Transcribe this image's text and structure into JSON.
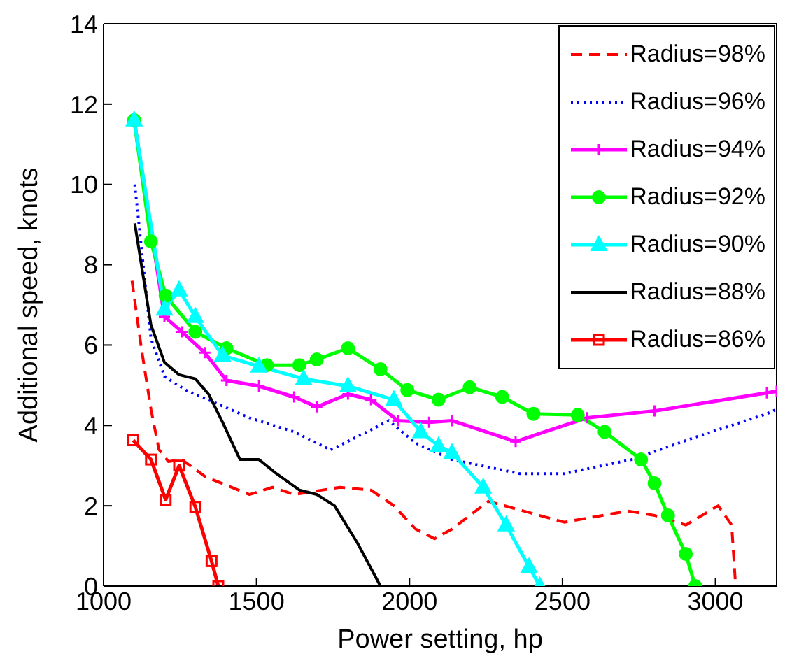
{
  "chart_data": {
    "type": "line",
    "xlabel": "Power setting, hp",
    "ylabel": "Additional speed, knots",
    "xlim": [
      1000,
      3200
    ],
    "xticks": [
      1000,
      1500,
      2000,
      2500,
      3000
    ],
    "ylim": [
      0,
      14
    ],
    "yticks": [
      0,
      2,
      4,
      6,
      8,
      10,
      12,
      14
    ],
    "legend": "top right",
    "series": [
      {
        "name": "Radius=98%",
        "color": "#ff0000",
        "line_style": "dashed",
        "marker": "none",
        "x": [
          1093,
          1124,
          1155,
          1181,
          1212,
          1256,
          1331,
          1477,
          1552,
          1623,
          1773,
          1874,
          1949,
          2020,
          2082,
          2139,
          2258,
          2506,
          2713,
          2801,
          2903,
          3009,
          3053,
          3066
        ],
        "values": [
          7.6,
          5.9,
          4.4,
          3.4,
          3.1,
          3.15,
          2.73,
          2.28,
          2.46,
          2.28,
          2.46,
          2.39,
          2.0,
          1.42,
          1.18,
          1.42,
          2.11,
          1.59,
          1.87,
          1.76,
          1.52,
          2.0,
          1.52,
          0
        ]
      },
      {
        "name": "Radius=96%",
        "color": "#0000ff",
        "line_style": "dotted",
        "marker": "none",
        "x": [
          1102,
          1155,
          1199,
          1269,
          1375,
          1477,
          1623,
          1742,
          1861,
          1932,
          2020,
          2139,
          2360,
          2506,
          2726,
          2947,
          3168,
          3200
        ],
        "values": [
          10.0,
          6.16,
          5.22,
          4.88,
          4.53,
          4.19,
          3.84,
          3.39,
          3.84,
          4.12,
          3.56,
          3.15,
          2.8,
          2.8,
          3.15,
          3.74,
          4.29,
          4.4
        ]
      },
      {
        "name": "Radius=94%",
        "color": "#ff00ff",
        "line_style": "solid",
        "marker": "cross",
        "x": [
          1100,
          1199,
          1256,
          1331,
          1402,
          1508,
          1623,
          1697,
          1799,
          1874,
          1962,
          2064,
          2139,
          2347,
          2581,
          2801,
          3168,
          3200
        ],
        "values": [
          11.6,
          6.71,
          6.33,
          5.81,
          5.12,
          4.98,
          4.71,
          4.46,
          4.78,
          4.64,
          4.12,
          4.08,
          4.12,
          3.6,
          4.19,
          4.36,
          4.81,
          4.85
        ]
      },
      {
        "name": "Radius=92%",
        "color": "#00ff00",
        "line_style": "solid",
        "marker": "circle",
        "x": [
          1100,
          1155,
          1203,
          1300,
          1402,
          1534,
          1640,
          1697,
          1799,
          1905,
          1993,
          2095,
          2197,
          2303,
          2405,
          2550,
          2638,
          2757,
          2801,
          2845,
          2903,
          2934
        ],
        "values": [
          11.6,
          8.58,
          7.23,
          6.33,
          5.92,
          5.5,
          5.5,
          5.64,
          5.92,
          5.4,
          4.88,
          4.64,
          4.95,
          4.71,
          4.29,
          4.26,
          3.84,
          3.15,
          2.56,
          1.76,
          0.8,
          0
        ]
      },
      {
        "name": "Radius=90%",
        "color": "#00ffff",
        "line_style": "solid",
        "marker": "triangle",
        "x": [
          1100,
          1199,
          1247,
          1300,
          1389,
          1508,
          1654,
          1799,
          1949,
          2037,
          2095,
          2139,
          2241,
          2316,
          2391,
          2426
        ],
        "values": [
          11.6,
          6.89,
          7.37,
          6.71,
          5.74,
          5.47,
          5.16,
          4.98,
          4.64,
          3.84,
          3.49,
          3.32,
          2.46,
          1.52,
          0.48,
          0
        ]
      },
      {
        "name": "Radius=88%",
        "color": "#000000",
        "line_style": "solid",
        "marker": "none",
        "x": [
          1102,
          1155,
          1199,
          1247,
          1300,
          1344,
          1389,
          1446,
          1508,
          1565,
          1640,
          1697,
          1755,
          1830,
          1905
        ],
        "values": [
          9.03,
          6.5,
          5.57,
          5.26,
          5.16,
          4.77,
          4.08,
          3.15,
          3.15,
          2.8,
          2.39,
          2.28,
          2.0,
          1.07,
          0
        ]
      },
      {
        "name": "Radius=86%",
        "color": "#ff0000",
        "line_style": "solid",
        "marker": "square",
        "x": [
          1097,
          1155,
          1203,
          1247,
          1300,
          1353,
          1375
        ],
        "values": [
          3.63,
          3.15,
          2.15,
          3.0,
          1.97,
          0.62,
          0
        ]
      }
    ]
  }
}
